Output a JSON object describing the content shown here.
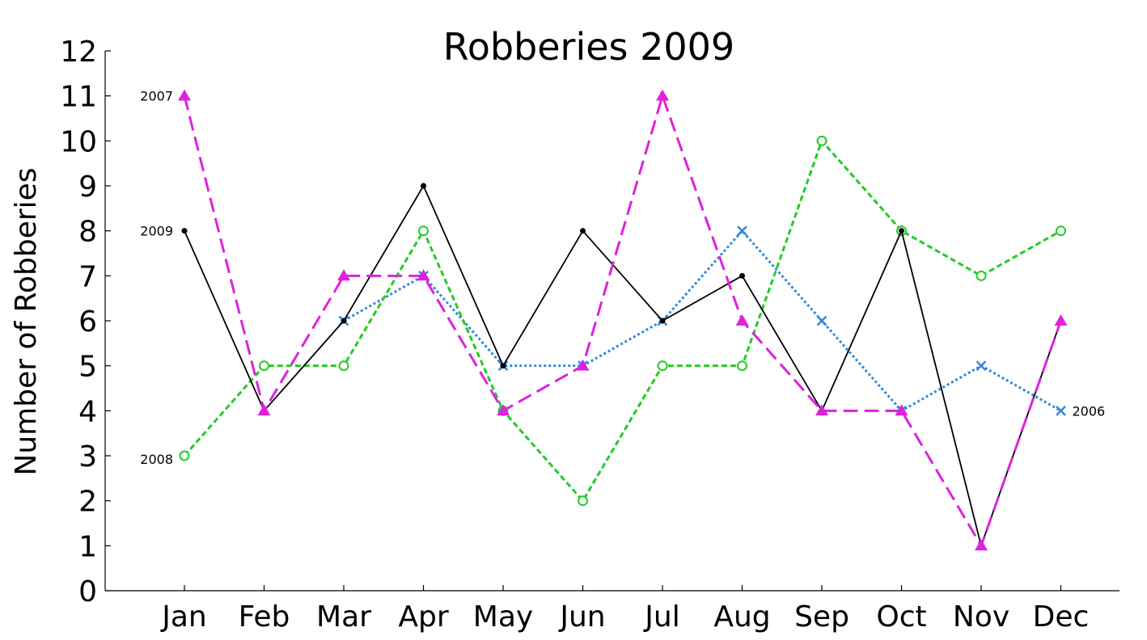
{
  "chart_data": {
    "type": "line",
    "title": "Robberies 2009",
    "xlabel": "",
    "ylabel": "Number of Robberies",
    "categories": [
      "Jan",
      "Feb",
      "Mar",
      "Apr",
      "May",
      "Jun",
      "Jul",
      "Aug",
      "Sep",
      "Oct",
      "Nov",
      "Dec"
    ],
    "ylim": [
      0,
      12
    ],
    "yticks": [
      "0",
      "1",
      "2",
      "3",
      "4",
      "5",
      "6",
      "7",
      "8",
      "9",
      "10",
      "11",
      "12"
    ],
    "grid": false,
    "series": [
      {
        "name": "2009",
        "color": "#000000",
        "line_style": "solid",
        "marker": "dot",
        "label_position": "start",
        "values": [
          8,
          4,
          6,
          9,
          5,
          8,
          6,
          7,
          4,
          8,
          1,
          6
        ]
      },
      {
        "name": "2008",
        "color": "#22cc22",
        "line_style": "dotted",
        "marker": "open-circle",
        "label_position": "start",
        "values": [
          3,
          5,
          5,
          8,
          4,
          2,
          5,
          5,
          10,
          8,
          7,
          8
        ]
      },
      {
        "name": "2007",
        "color": "#dd22dd",
        "line_style": "dashed",
        "marker": "triangle",
        "label_position": "start",
        "values": [
          11,
          4,
          7,
          7,
          4,
          5,
          11,
          6,
          4,
          4,
          1,
          6
        ]
      },
      {
        "name": "2006",
        "color": "#3388dd",
        "line_style": "dotted-fine",
        "marker": "x",
        "label_position": "end",
        "values": [
          null,
          null,
          6,
          7,
          5,
          5,
          6,
          8,
          6,
          4,
          5,
          4
        ]
      }
    ]
  }
}
